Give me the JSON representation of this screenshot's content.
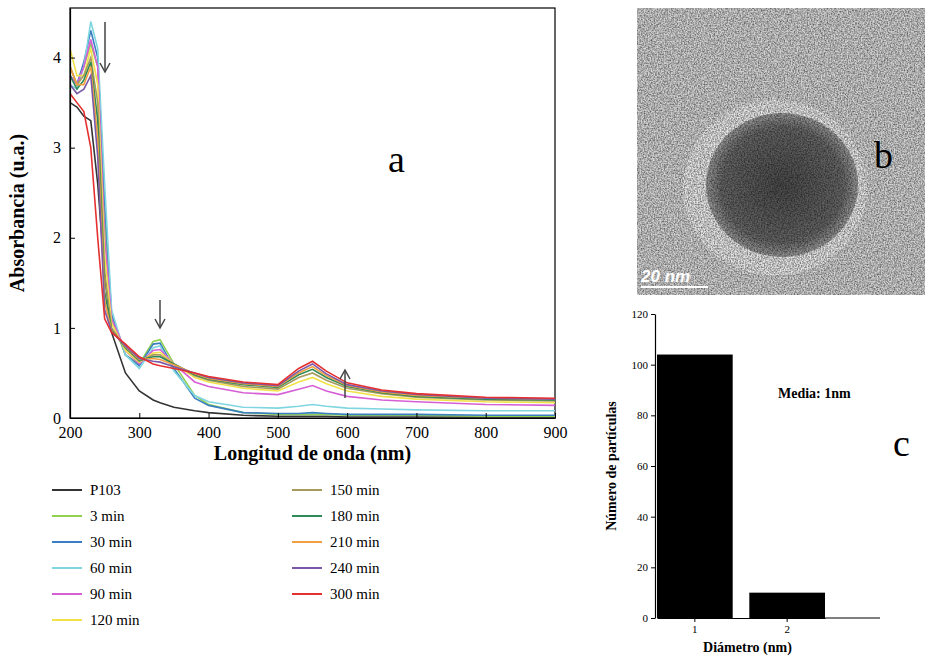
{
  "chart_data": [
    {
      "type": "line",
      "panel_label": "a",
      "x_label": "Longitud de onda (nm)",
      "y_label": "Absorbancia (u.a.)",
      "x": [
        200,
        210,
        220,
        230,
        240,
        250,
        260,
        280,
        300,
        320,
        330,
        350,
        380,
        400,
        450,
        500,
        530,
        550,
        570,
        600,
        650,
        700,
        800,
        900
      ],
      "xlim": [
        200,
        900
      ],
      "xticks": [
        200,
        300,
        400,
        500,
        600,
        700,
        800,
        900
      ],
      "ylim": [
        0,
        4.55
      ],
      "yticks": [
        0,
        1,
        2,
        3,
        4
      ],
      "legend": "bottom",
      "series": [
        {
          "name": "P103",
          "color": "#333333",
          "values": [
            3.5,
            3.45,
            3.35,
            3.3,
            2.6,
            1.6,
            0.95,
            0.5,
            0.3,
            0.2,
            0.17,
            0.12,
            0.08,
            0.06,
            0.03,
            0.02,
            0.02,
            0.02,
            0.02,
            0.01,
            0.01,
            0.01,
            0.01,
            0.01
          ]
        },
        {
          "name": "3 min",
          "color": "#8fd14f",
          "values": [
            3.9,
            3.7,
            3.9,
            4.15,
            3.9,
            2.2,
            1.1,
            0.7,
            0.6,
            0.85,
            0.87,
            0.6,
            0.25,
            0.15,
            0.06,
            0.04,
            0.04,
            0.04,
            0.04,
            0.03,
            0.03,
            0.03,
            0.02,
            0.02
          ]
        },
        {
          "name": "30 min",
          "color": "#3a7fc1",
          "values": [
            3.8,
            3.7,
            3.95,
            4.3,
            4.0,
            2.4,
            1.15,
            0.7,
            0.58,
            0.82,
            0.83,
            0.55,
            0.22,
            0.14,
            0.06,
            0.05,
            0.05,
            0.06,
            0.05,
            0.04,
            0.04,
            0.04,
            0.03,
            0.03
          ]
        },
        {
          "name": "60 min",
          "color": "#7fd6e0",
          "values": [
            3.7,
            3.65,
            3.9,
            4.4,
            4.1,
            2.6,
            1.2,
            0.7,
            0.55,
            0.78,
            0.8,
            0.52,
            0.25,
            0.18,
            0.12,
            0.11,
            0.13,
            0.15,
            0.13,
            0.11,
            0.1,
            0.09,
            0.08,
            0.08
          ]
        },
        {
          "name": "90 min",
          "color": "#d65fd6",
          "values": [
            3.8,
            3.7,
            3.9,
            4.2,
            3.9,
            2.0,
            1.1,
            0.75,
            0.6,
            0.75,
            0.76,
            0.6,
            0.4,
            0.35,
            0.28,
            0.26,
            0.32,
            0.36,
            0.3,
            0.24,
            0.2,
            0.18,
            0.15,
            0.14
          ]
        },
        {
          "name": "120 min",
          "color": "#f2e24a",
          "values": [
            4.1,
            3.8,
            3.8,
            4.1,
            3.7,
            1.8,
            1.05,
            0.75,
            0.62,
            0.72,
            0.73,
            0.6,
            0.45,
            0.4,
            0.33,
            0.3,
            0.4,
            0.45,
            0.38,
            0.3,
            0.24,
            0.21,
            0.18,
            0.17
          ]
        },
        {
          "name": "150 min",
          "color": "#a89a5c",
          "values": [
            3.9,
            3.7,
            3.8,
            4.0,
            3.5,
            1.6,
            1.0,
            0.78,
            0.63,
            0.7,
            0.7,
            0.6,
            0.47,
            0.42,
            0.35,
            0.32,
            0.45,
            0.5,
            0.42,
            0.33,
            0.27,
            0.23,
            0.2,
            0.19
          ]
        },
        {
          "name": "180 min",
          "color": "#2e8b57",
          "values": [
            3.8,
            3.65,
            3.75,
            3.95,
            3.3,
            1.4,
            0.98,
            0.78,
            0.64,
            0.68,
            0.68,
            0.6,
            0.48,
            0.43,
            0.37,
            0.34,
            0.48,
            0.54,
            0.45,
            0.35,
            0.28,
            0.24,
            0.21,
            0.2
          ]
        },
        {
          "name": "210 min",
          "color": "#f0a040",
          "values": [
            3.9,
            3.7,
            3.7,
            3.9,
            3.1,
            1.3,
            0.97,
            0.79,
            0.65,
            0.66,
            0.65,
            0.59,
            0.49,
            0.44,
            0.38,
            0.35,
            0.5,
            0.57,
            0.47,
            0.36,
            0.29,
            0.25,
            0.22,
            0.21
          ]
        },
        {
          "name": "240 min",
          "color": "#7a5aa8",
          "values": [
            3.7,
            3.6,
            3.65,
            3.8,
            2.9,
            1.2,
            0.96,
            0.8,
            0.66,
            0.63,
            0.62,
            0.57,
            0.5,
            0.45,
            0.39,
            0.36,
            0.52,
            0.6,
            0.49,
            0.37,
            0.3,
            0.26,
            0.22,
            0.21
          ]
        },
        {
          "name": "300 min",
          "color": "#e53030",
          "values": [
            3.6,
            3.5,
            3.4,
            3.0,
            2.0,
            1.1,
            0.95,
            0.82,
            0.68,
            0.6,
            0.58,
            0.55,
            0.5,
            0.46,
            0.4,
            0.37,
            0.55,
            0.63,
            0.52,
            0.39,
            0.31,
            0.27,
            0.23,
            0.22
          ]
        }
      ]
    },
    {
      "type": "image",
      "panel_label": "b",
      "scale_bar": "20 nm"
    },
    {
      "type": "bar",
      "panel_label": "c",
      "x_label": "Diámetro (nm)",
      "y_label": "Número de partículas",
      "annotations": [
        "Media: 1nm"
      ],
      "categories": [
        "1",
        "2"
      ],
      "values": [
        104,
        10
      ],
      "color": "#000000",
      "ylim": [
        0,
        120
      ],
      "yticks": [
        0,
        20,
        40,
        60,
        80,
        100,
        120
      ]
    }
  ]
}
